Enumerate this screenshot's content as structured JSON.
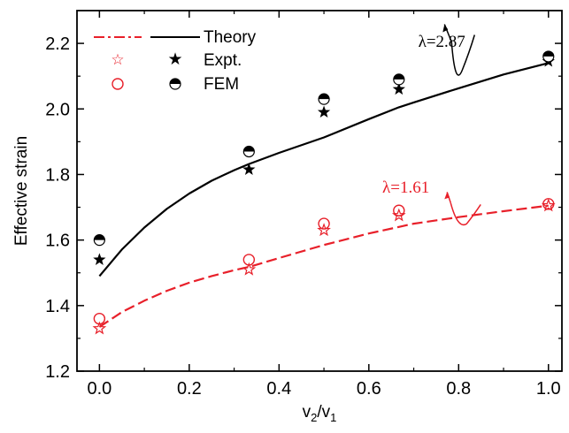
{
  "chart_data": {
    "type": "scatter",
    "xlabel": "v",
    "xlabel_sub1": "2",
    "xlabel_sep": "/v",
    "xlabel_sub2": "1",
    "ylabel": "Effective strain",
    "xlim": [
      -0.05,
      1.03
    ],
    "ylim": [
      1.2,
      2.3
    ],
    "xticks": [
      0.0,
      0.2,
      0.4,
      0.6,
      0.8,
      1.0
    ],
    "xtick_labels": [
      "0.0",
      "0.2",
      "0.4",
      "0.6",
      "0.8",
      "1.0"
    ],
    "yticks": [
      1.2,
      1.4,
      1.6,
      1.8,
      2.0,
      2.2
    ],
    "ytick_labels": [
      "1.2",
      "1.4",
      "1.6",
      "1.8",
      "2.0",
      "2.2"
    ],
    "legend": {
      "placement": "top-left",
      "entries": [
        {
          "label": "Theory",
          "marks": [
            "red-dash-line",
            "black-solid-line"
          ]
        },
        {
          "label": "Expt.",
          "marks": [
            "red-open-star",
            "black-filled-star"
          ]
        },
        {
          "label": "FEM",
          "marks": [
            "red-open-circle",
            "black-half-filled-circle"
          ]
        }
      ]
    },
    "series": [
      {
        "group": "lambda-2.87",
        "kind": "theory",
        "style": "solid",
        "color": "#000000",
        "x": [
          0.0,
          0.05,
          0.1,
          0.15,
          0.2,
          0.25,
          0.3,
          0.333,
          0.4,
          0.5,
          0.6,
          0.667,
          0.7,
          0.8,
          0.9,
          1.0
        ],
        "y": [
          1.49,
          1.571,
          1.638,
          1.695,
          1.742,
          1.781,
          1.813,
          1.832,
          1.866,
          1.913,
          1.969,
          2.005,
          2.02,
          2.063,
          2.105,
          2.14
        ]
      },
      {
        "group": "lambda-2.87",
        "kind": "expt",
        "marker": "filled-star",
        "color": "#000000",
        "x": [
          0.0,
          0.333,
          0.5,
          0.667,
          1.0
        ],
        "y": [
          1.54,
          1.815,
          1.99,
          2.06,
          2.145
        ]
      },
      {
        "group": "lambda-2.87",
        "kind": "fem",
        "marker": "half-filled-circle",
        "color": "#000000",
        "x": [
          0.0,
          0.333,
          0.5,
          0.667,
          1.0
        ],
        "y": [
          1.6,
          1.87,
          2.03,
          2.09,
          2.16
        ]
      },
      {
        "group": "lambda-1.61",
        "kind": "theory",
        "style": "dashed",
        "color": "#e8202a",
        "x": [
          0.0,
          0.05,
          0.1,
          0.15,
          0.2,
          0.25,
          0.3,
          0.333,
          0.4,
          0.5,
          0.6,
          0.667,
          0.7,
          0.8,
          0.9,
          1.0
        ],
        "y": [
          1.335,
          1.38,
          1.415,
          1.445,
          1.47,
          1.49,
          1.508,
          1.518,
          1.545,
          1.585,
          1.62,
          1.64,
          1.65,
          1.67,
          1.688,
          1.705
        ]
      },
      {
        "group": "lambda-1.61",
        "kind": "expt",
        "marker": "open-star",
        "color": "#e8202a",
        "x": [
          0.0,
          0.333,
          0.5,
          0.667,
          1.0
        ],
        "y": [
          1.33,
          1.51,
          1.63,
          1.675,
          1.705
        ]
      },
      {
        "group": "lambda-1.61",
        "kind": "fem",
        "marker": "open-circle",
        "color": "#e8202a",
        "x": [
          0.0,
          0.333,
          0.5,
          0.667,
          1.0
        ],
        "y": [
          1.36,
          1.54,
          1.65,
          1.69,
          1.71
        ]
      }
    ],
    "annotations": [
      {
        "text": "λ=2.87",
        "color": "#000000",
        "x": 0.71,
        "y": 2.19,
        "arrow_to": [
          0.8,
          2.145
        ]
      },
      {
        "text": "λ=1.61",
        "color": "#e8202a",
        "x": 0.63,
        "y": 1.745,
        "arrow_to": [
          0.79,
          1.73
        ]
      }
    ],
    "grid": false
  }
}
